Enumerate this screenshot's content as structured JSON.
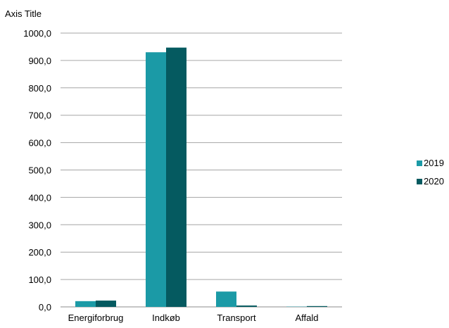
{
  "chart_data": {
    "type": "bar",
    "ylabel": "Axis Title",
    "categories": [
      "Energiforbrug",
      "Indkøb",
      "Transport",
      "Affald"
    ],
    "series": [
      {
        "name": "2019",
        "values": [
          21,
          930,
          56,
          1
        ],
        "color": "#1b9aa6"
      },
      {
        "name": "2020",
        "values": [
          23,
          947,
          5,
          3
        ],
        "color": "#055a60"
      }
    ],
    "ylim": [
      0,
      1000
    ],
    "yticks": [
      "0,0",
      "100,0",
      "200,0",
      "300,0",
      "400,0",
      "500,0",
      "600,0",
      "700,0",
      "800,0",
      "900,0",
      "1000,0"
    ],
    "grid": true,
    "legend": "right"
  }
}
